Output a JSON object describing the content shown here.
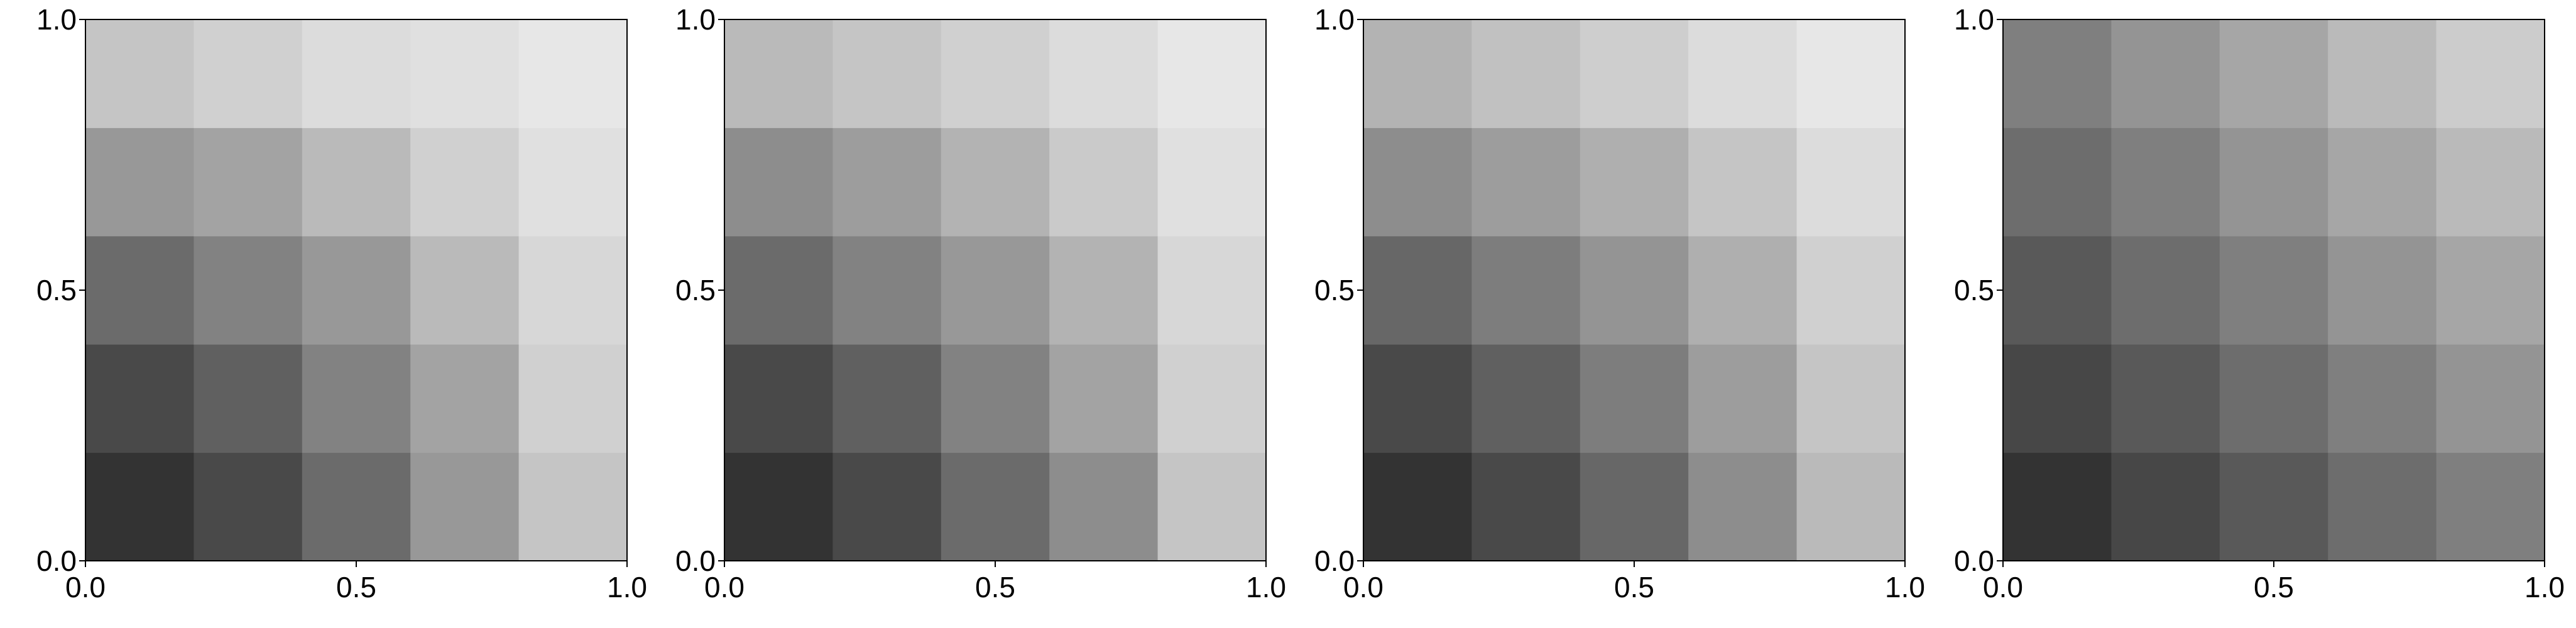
{
  "chart_data": [
    {
      "type": "heatmap",
      "xlim": [
        0,
        1
      ],
      "ylim": [
        1,
        0
      ],
      "clim": [
        0,
        1
      ],
      "colors": [
        "#f2f2f2",
        "#111111"
      ],
      "xticks": [
        {
          "value": 0,
          "label": "0.0"
        },
        {
          "value": 0.5,
          "label": "0.5"
        },
        {
          "value": 1,
          "label": "1.0"
        }
      ],
      "yticks": [
        {
          "value": 0,
          "label": "0.0"
        },
        {
          "value": 0.5,
          "label": "0.5"
        },
        {
          "value": 1,
          "label": "1.0"
        }
      ],
      "values": [
        [
          0.85,
          0.75,
          0.6,
          0.4,
          0.2
        ],
        [
          0.75,
          0.65,
          0.5,
          0.35,
          0.15
        ],
        [
          0.6,
          0.5,
          0.4,
          0.25,
          0.12
        ],
        [
          0.4,
          0.35,
          0.25,
          0.15,
          0.08
        ],
        [
          0.2,
          0.15,
          0.1,
          0.08,
          0.05
        ]
      ]
    },
    {
      "type": "heatmap",
      "xlim": [
        0,
        1
      ],
      "ylim": [
        1,
        0
      ],
      "clim": [
        0,
        1
      ],
      "colors": [
        "#f2f2f2",
        "#111111"
      ],
      "xticks": [
        {
          "value": 0,
          "label": "0.0"
        },
        {
          "value": 0.5,
          "label": "0.5"
        },
        {
          "value": 1,
          "label": "1.0"
        }
      ],
      "yticks": [
        {
          "value": 0,
          "label": "0.0"
        },
        {
          "value": 0.5,
          "label": "0.5"
        },
        {
          "value": 1,
          "label": "1.0"
        }
      ],
      "values": [
        [
          0.85,
          0.75,
          0.6,
          0.45,
          0.2
        ],
        [
          0.75,
          0.65,
          0.5,
          0.35,
          0.15
        ],
        [
          0.6,
          0.5,
          0.4,
          0.28,
          0.12
        ],
        [
          0.45,
          0.38,
          0.28,
          0.18,
          0.08
        ],
        [
          0.25,
          0.2,
          0.15,
          0.1,
          0.05
        ]
      ]
    },
    {
      "type": "heatmap",
      "xlim": [
        0,
        1
      ],
      "ylim": [
        1,
        0
      ],
      "clim": [
        0,
        1
      ],
      "colors": [
        "#f2f2f2",
        "#111111"
      ],
      "xticks": [
        {
          "value": 0,
          "label": "0.0"
        },
        {
          "value": 0.5,
          "label": "0.5"
        },
        {
          "value": 1,
          "label": "1.0"
        }
      ],
      "yticks": [
        {
          "value": 0,
          "label": "0.0"
        },
        {
          "value": 0.5,
          "label": "0.5"
        },
        {
          "value": 1,
          "label": "1.0"
        }
      ],
      "values": [
        [
          0.85,
          0.75,
          0.62,
          0.45,
          0.25
        ],
        [
          0.75,
          0.65,
          0.52,
          0.38,
          0.2
        ],
        [
          0.62,
          0.52,
          0.42,
          0.3,
          0.15
        ],
        [
          0.45,
          0.38,
          0.3,
          0.2,
          0.1
        ],
        [
          0.28,
          0.22,
          0.16,
          0.1,
          0.05
        ]
      ]
    },
    {
      "type": "heatmap",
      "xlim": [
        0,
        1
      ],
      "ylim": [
        1,
        0
      ],
      "clim": [
        0,
        1
      ],
      "colors": [
        "#f2f2f2",
        "#111111"
      ],
      "xticks": [
        {
          "value": 0,
          "label": "0.0"
        },
        {
          "value": 0.5,
          "label": "0.5"
        },
        {
          "value": 1,
          "label": "1.0"
        }
      ],
      "yticks": [
        {
          "value": 0,
          "label": "0.0"
        },
        {
          "value": 0.5,
          "label": "0.5"
        },
        {
          "value": 1,
          "label": "1.0"
        }
      ],
      "values": [
        [
          0.85,
          0.76,
          0.68,
          0.59,
          0.51
        ],
        [
          0.76,
          0.68,
          0.59,
          0.51,
          0.42
        ],
        [
          0.68,
          0.59,
          0.51,
          0.42,
          0.34
        ],
        [
          0.59,
          0.51,
          0.42,
          0.34,
          0.25
        ],
        [
          0.51,
          0.42,
          0.34,
          0.25,
          0.17
        ]
      ]
    }
  ]
}
